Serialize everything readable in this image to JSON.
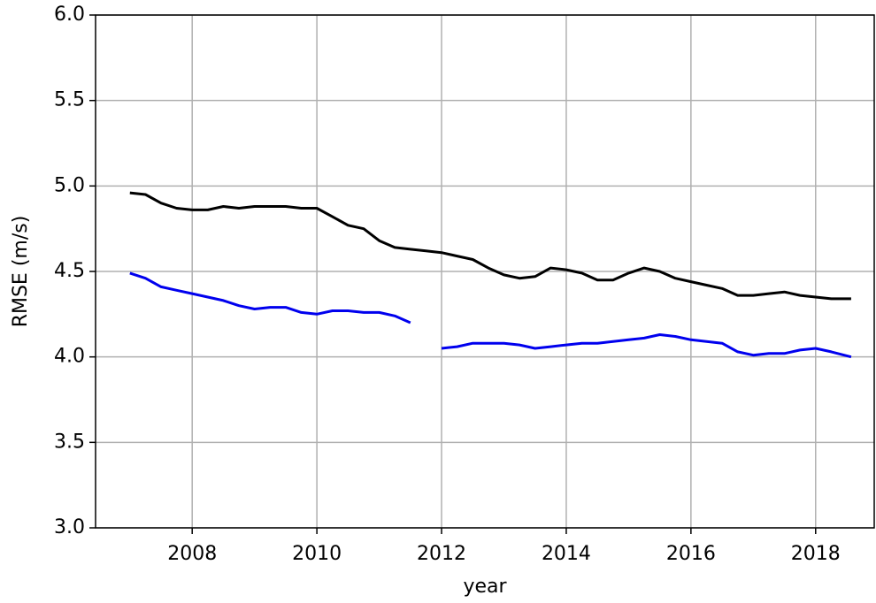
{
  "chart_data": {
    "type": "line",
    "xlabel": "year",
    "ylabel": "RMSE (m/s)",
    "x": [
      2007.0,
      2007.25,
      2007.5,
      2007.75,
      2008.0,
      2008.25,
      2008.5,
      2008.75,
      2009.0,
      2009.25,
      2009.5,
      2009.75,
      2010.0,
      2010.25,
      2010.5,
      2010.75,
      2011.0,
      2011.25,
      2011.5,
      2011.75,
      2012.0,
      2012.25,
      2012.5,
      2012.75,
      2013.0,
      2013.25,
      2013.5,
      2013.75,
      2014.0,
      2014.25,
      2014.5,
      2014.75,
      2015.0,
      2015.25,
      2015.5,
      2015.75,
      2016.0,
      2016.25,
      2016.5,
      2016.75,
      2017.0,
      2017.25,
      2017.5,
      2017.75,
      2018.0,
      2018.25,
      2018.57
    ],
    "series": [
      {
        "color": "#000000",
        "values": [
          4.96,
          4.95,
          4.9,
          4.87,
          4.86,
          4.86,
          4.88,
          4.87,
          4.88,
          4.88,
          4.88,
          4.87,
          4.87,
          4.82,
          4.77,
          4.75,
          4.68,
          4.64,
          4.63,
          4.62,
          4.61,
          4.59,
          4.57,
          4.52,
          4.48,
          4.46,
          4.47,
          4.52,
          4.51,
          4.49,
          4.45,
          4.45,
          4.49,
          4.52,
          4.5,
          4.46,
          4.44,
          4.42,
          4.4,
          4.36,
          4.36,
          4.37,
          4.38,
          4.36,
          4.35,
          4.34,
          4.34
        ]
      },
      {
        "color": "#0000ee",
        "values": [
          4.49,
          4.46,
          4.41,
          4.39,
          4.37,
          4.35,
          4.33,
          4.3,
          4.28,
          4.29,
          4.29,
          4.26,
          4.25,
          4.27,
          4.27,
          4.26,
          4.26,
          4.24,
          4.2,
          null,
          4.05,
          4.06,
          4.08,
          4.08,
          4.08,
          4.07,
          4.05,
          4.06,
          4.07,
          4.08,
          4.08,
          4.09,
          4.1,
          4.11,
          4.13,
          4.12,
          4.1,
          4.09,
          4.08,
          4.03,
          4.01,
          4.02,
          4.02,
          4.04,
          4.05,
          4.03,
          4.0
        ]
      }
    ],
    "xlim": [
      2006.45,
      2018.94
    ],
    "ylim": [
      3.0,
      6.0
    ],
    "xticks": [
      2008,
      2010,
      2012,
      2014,
      2016,
      2018
    ],
    "yticks": [
      {
        "value": 3.0,
        "label": "3.0"
      },
      {
        "value": 3.5,
        "label": "3.5"
      },
      {
        "value": 4.0,
        "label": "4.0"
      },
      {
        "value": 4.5,
        "label": "4.5"
      },
      {
        "value": 5.0,
        "label": "5.0"
      },
      {
        "value": 5.5,
        "label": "5.5"
      },
      {
        "value": 6.0,
        "label": "6.0"
      }
    ],
    "grid": true
  }
}
